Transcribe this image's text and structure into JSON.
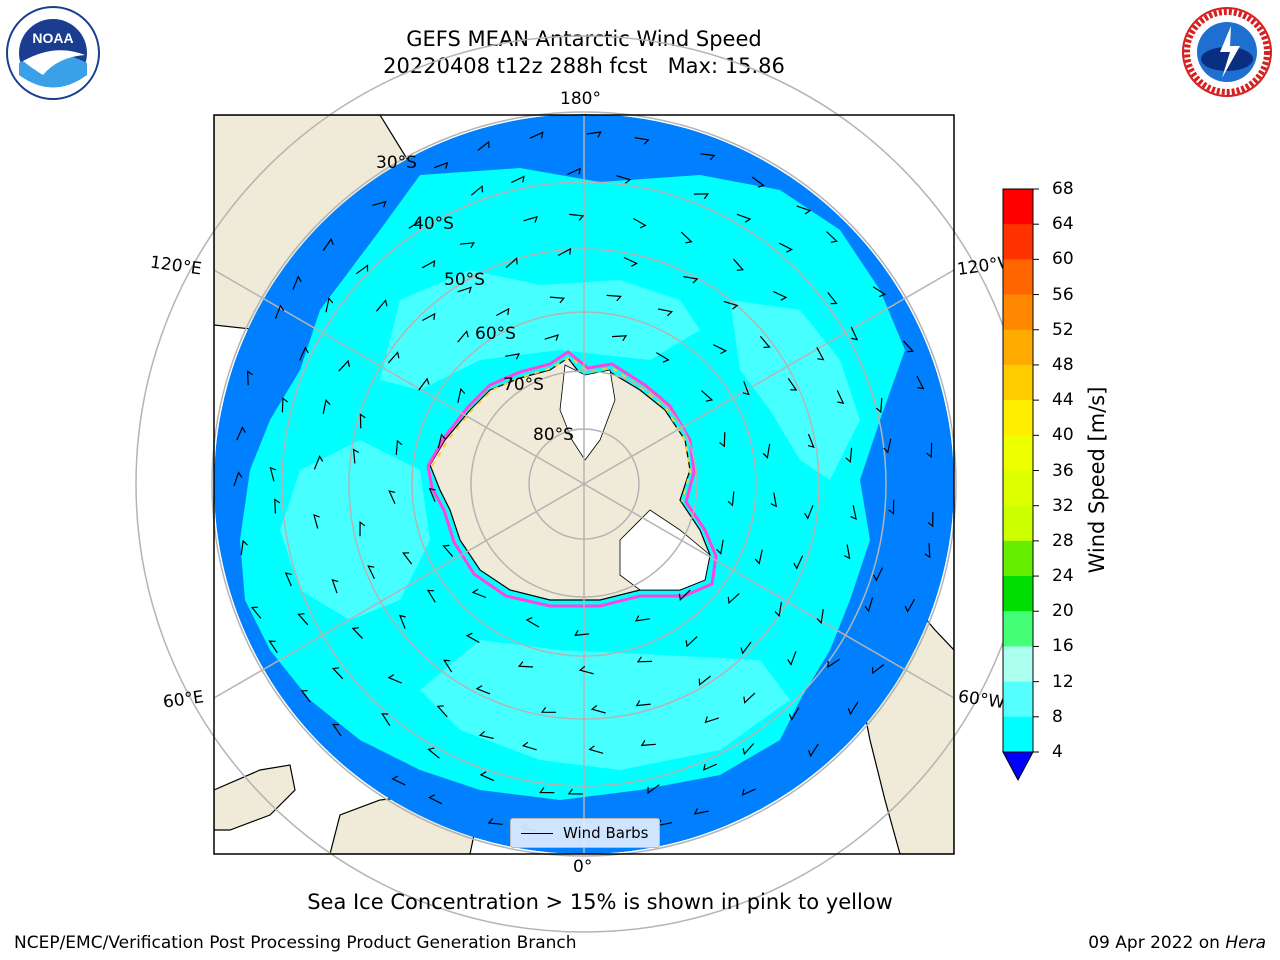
{
  "header": {
    "title_line1": "GEFS MEAN Antarctic Wind Speed",
    "title_line2": "20220408 t12z 288h fcst   Max: 15.86"
  },
  "logos": {
    "left": {
      "name": "noaa-logo",
      "text": "NOAA"
    },
    "right": {
      "name": "national-weather-service-logo",
      "text": "NATIONAL WEATHER SERVICE"
    }
  },
  "map": {
    "projection": "south-polar-stereographic",
    "longitude_labels": {
      "top": "180°",
      "bottom": "0°",
      "left_upper": "120°E",
      "left_lower": "60°E",
      "right_upper": "120°W",
      "right_lower": "60°W"
    },
    "latitude_labels": [
      "30°S",
      "40°S",
      "50°S",
      "60°S",
      "70°S",
      "80°S"
    ],
    "colors": {
      "ocean_4_8": "#0080ff",
      "ocean_8_12": "#00ffff",
      "ocean_12_16": "#55ffff",
      "land": "#efebd8",
      "sea_ice_edge_pink": "#ff44dd",
      "sea_ice_edge_yellow": "#ffcc33",
      "gridline": "#b4b4b4"
    },
    "legend_label": "Wind Barbs"
  },
  "colorbar": {
    "label": "Wind Speed [m/s]",
    "ticks": [
      "68",
      "64",
      "60",
      "56",
      "52",
      "48",
      "44",
      "40",
      "36",
      "32",
      "28",
      "24",
      "20",
      "16",
      "12",
      "8",
      "4"
    ],
    "colors_top_to_bottom": [
      "#ff0000",
      "#ff3300",
      "#ff6600",
      "#ff8800",
      "#ffaa00",
      "#ffcc00",
      "#ffee00",
      "#eeff00",
      "#ddff00",
      "#ccff00",
      "#66ee00",
      "#00dd00",
      "#44ff77",
      "#aaffee",
      "#55ffff",
      "#00ffff",
      "#0080ff"
    ],
    "extend_color": "#0000ff"
  },
  "caption": "Sea Ice Concentration > 15% is shown in pink to yellow",
  "footer": {
    "left": "NCEP/EMC/Verification Post Processing Product Generation Branch",
    "right_date": "09 Apr 2022 on ",
    "right_host": "Hera"
  }
}
